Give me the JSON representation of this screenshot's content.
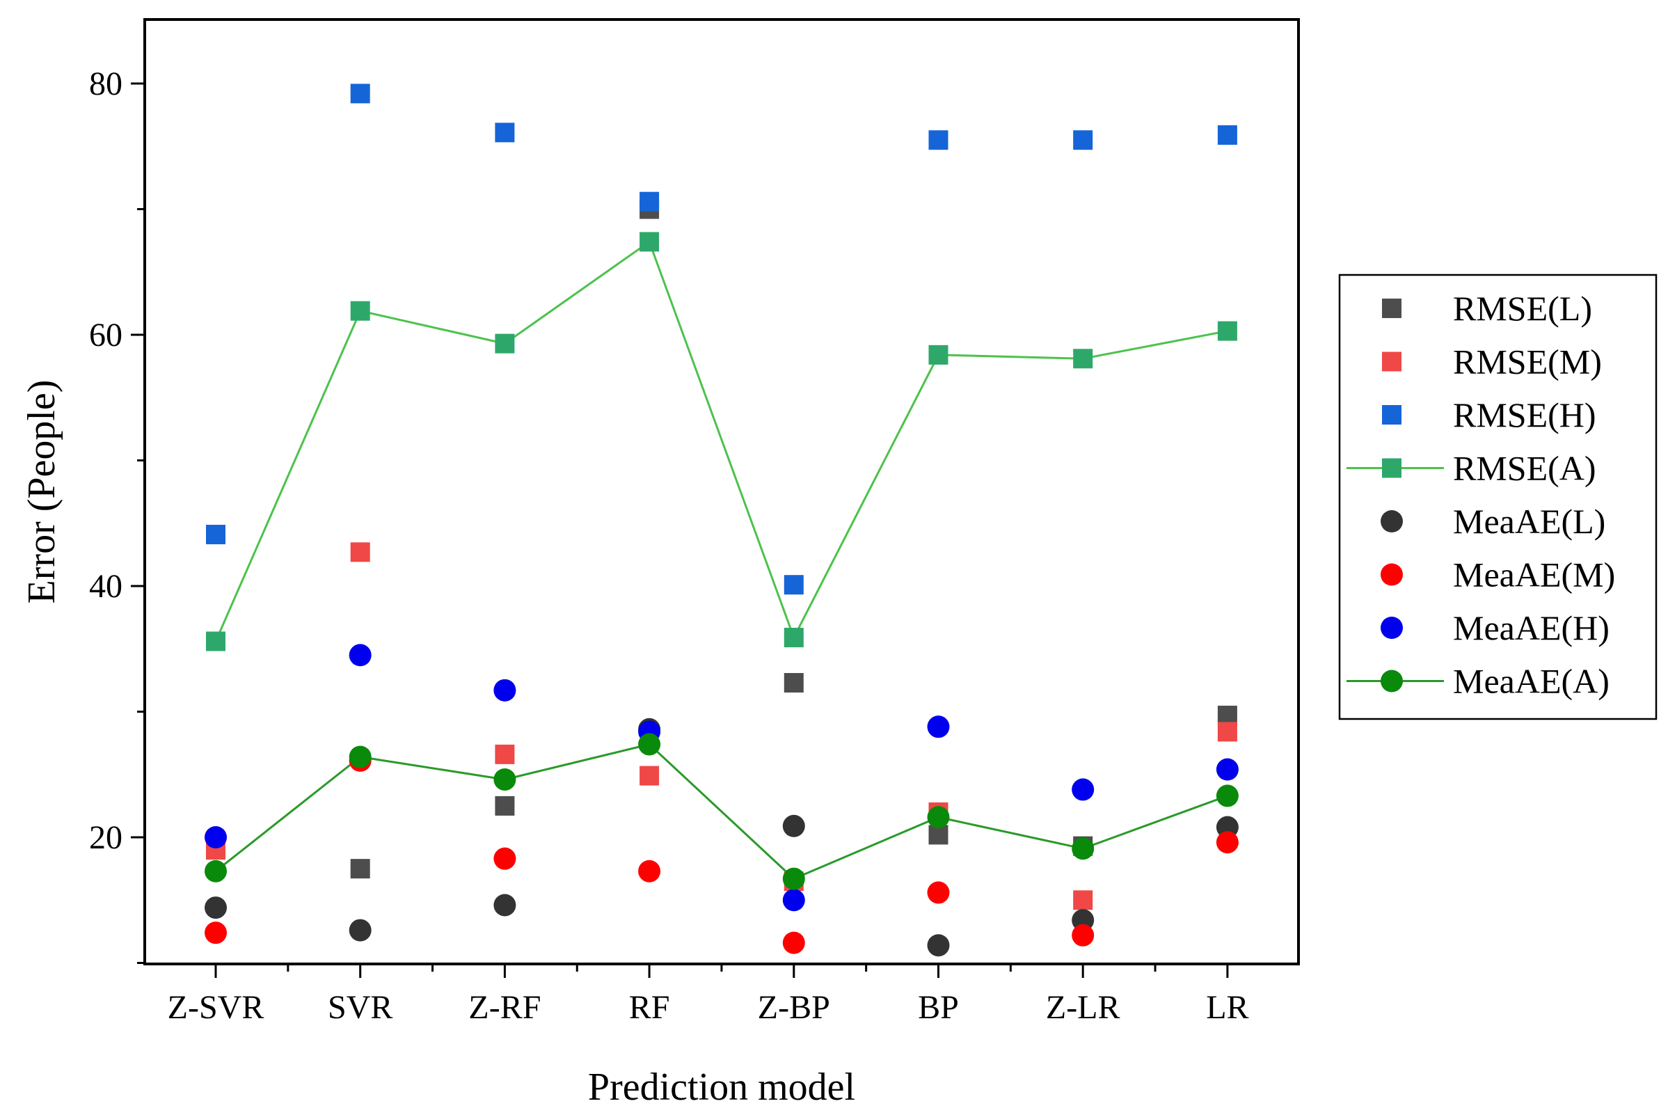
{
  "chart_data": {
    "type": "scatter",
    "xlabel": "Prediction model",
    "ylabel": "Error (People)",
    "categories": [
      "Z-SVR",
      "SVR",
      "Z-RF",
      "RF",
      "Z-BP",
      "BP",
      "Z-LR",
      "LR"
    ],
    "ylim": [
      10,
      85
    ],
    "yticks": [
      20,
      40,
      60,
      80
    ],
    "grid": false,
    "legend_position": "right",
    "series": [
      {
        "name": "RMSE(L)",
        "marker": "square",
        "line": false,
        "color": "#4d4d4d",
        "values": [
          19.0,
          17.5,
          22.5,
          70.0,
          32.3,
          20.2,
          19.3,
          29.7
        ]
      },
      {
        "name": "RMSE(M)",
        "marker": "square",
        "line": false,
        "color": "#f04747",
        "values": [
          19.0,
          42.7,
          26.6,
          24.9,
          16.5,
          22.0,
          15.0,
          28.4
        ]
      },
      {
        "name": "RMSE(H)",
        "marker": "square",
        "line": false,
        "color": "#1565d8",
        "values": [
          44.1,
          79.2,
          76.1,
          70.6,
          40.1,
          75.5,
          75.5,
          75.9
        ]
      },
      {
        "name": "RMSE(A)",
        "marker": "square",
        "line": true,
        "color": "#2ea86a",
        "line_color": "#4cc24c",
        "values": [
          35.6,
          61.9,
          59.3,
          67.4,
          35.9,
          58.4,
          58.1,
          60.3
        ]
      },
      {
        "name": "MeaAE(L)",
        "marker": "circle",
        "line": false,
        "color": "#333333",
        "values": [
          14.4,
          12.6,
          14.6,
          28.6,
          20.9,
          11.4,
          13.4,
          20.8
        ]
      },
      {
        "name": "MeaAE(M)",
        "marker": "circle",
        "line": false,
        "color": "#ff0000",
        "values": [
          12.4,
          26.1,
          18.3,
          17.3,
          11.6,
          15.6,
          12.2,
          19.6
        ]
      },
      {
        "name": "MeaAE(H)",
        "marker": "circle",
        "line": false,
        "color": "#0000ee",
        "values": [
          20.0,
          34.5,
          31.7,
          28.4,
          15.0,
          28.8,
          23.8,
          25.4
        ]
      },
      {
        "name": "MeaAE(A)",
        "marker": "circle",
        "line": true,
        "color": "#0a8a0a",
        "line_color": "#2a9a2a",
        "values": [
          17.3,
          26.4,
          24.6,
          27.4,
          16.7,
          21.6,
          19.1,
          23.3
        ]
      }
    ]
  }
}
